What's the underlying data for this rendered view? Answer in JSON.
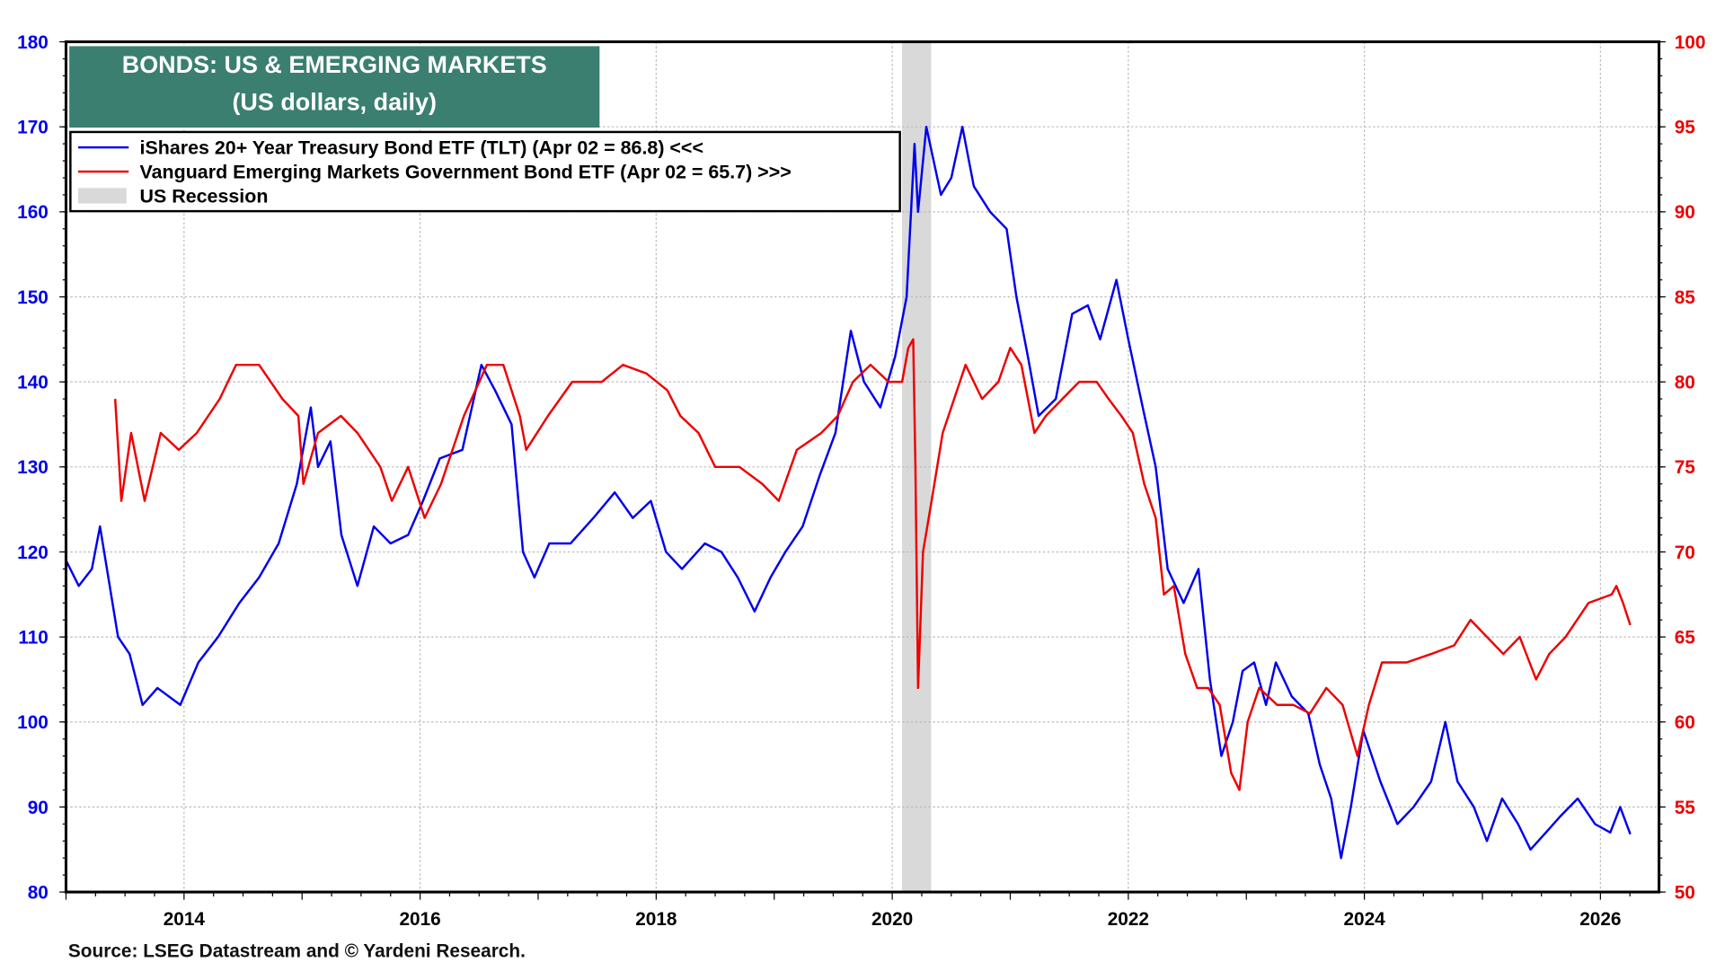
{
  "chart_data": {
    "type": "line",
    "title": "BONDS: US & EMERGING MARKETS",
    "subtitle": "(US dollars, daily)",
    "source": "Source: LSEG Datastream and © Yardeni Research.",
    "x_range": [
      "2013-01-01",
      "2026-06-30"
    ],
    "x_ticks": [
      "2014",
      "2016",
      "2018",
      "2020",
      "2022",
      "2024",
      "2026"
    ],
    "y_left": {
      "range": [
        80,
        180
      ],
      "ticks": [
        80,
        90,
        100,
        110,
        120,
        130,
        140,
        150,
        160,
        170,
        180
      ],
      "color": "#0000ee"
    },
    "y_right": {
      "range": [
        50,
        100
      ],
      "ticks": [
        50,
        55,
        60,
        65,
        70,
        75,
        80,
        85,
        90,
        95,
        100
      ],
      "color": "#ee0000"
    },
    "grid": true,
    "legend_position": "top-left",
    "recession": {
      "label": "US Recession",
      "start": "2020-02-01",
      "end": "2020-04-30",
      "color": "#d9d9d9"
    },
    "series": [
      {
        "name": "iShares 20+ Year Treasury Bond ETF (TLT) (Apr 02 = 86.8) <<<",
        "axis": "left",
        "color": "#0000ee",
        "points": [
          [
            "2013-01-01",
            119
          ],
          [
            "2013-02-10",
            116
          ],
          [
            "2013-03-20",
            118
          ],
          [
            "2013-04-15",
            123
          ],
          [
            "2013-06-10",
            110
          ],
          [
            "2013-07-15",
            108
          ],
          [
            "2013-08-25",
            102
          ],
          [
            "2013-10-10",
            104
          ],
          [
            "2013-12-20",
            102
          ],
          [
            "2014-02-15",
            107
          ],
          [
            "2014-04-15",
            110
          ],
          [
            "2014-06-20",
            114
          ],
          [
            "2014-08-20",
            117
          ],
          [
            "2014-10-20",
            121
          ],
          [
            "2014-12-15",
            128
          ],
          [
            "2015-01-28",
            137
          ],
          [
            "2015-02-20",
            130
          ],
          [
            "2015-03-28",
            133
          ],
          [
            "2015-05-01",
            122
          ],
          [
            "2015-06-20",
            116
          ],
          [
            "2015-08-10",
            123
          ],
          [
            "2015-10-01",
            121
          ],
          [
            "2015-11-25",
            122
          ],
          [
            "2016-01-10",
            126
          ],
          [
            "2016-03-01",
            131
          ],
          [
            "2016-05-10",
            132
          ],
          [
            "2016-07-08",
            142
          ],
          [
            "2016-08-20",
            139
          ],
          [
            "2016-10-10",
            135
          ],
          [
            "2016-11-15",
            120
          ],
          [
            "2016-12-20",
            117
          ],
          [
            "2017-02-05",
            121
          ],
          [
            "2017-04-10",
            121
          ],
          [
            "2017-06-20",
            124
          ],
          [
            "2017-08-25",
            127
          ],
          [
            "2017-10-20",
            124
          ],
          [
            "2017-12-15",
            126
          ],
          [
            "2018-02-01",
            120
          ],
          [
            "2018-03-20",
            118
          ],
          [
            "2018-05-30",
            121
          ],
          [
            "2018-07-20",
            120
          ],
          [
            "2018-09-10",
            117
          ],
          [
            "2018-11-01",
            113
          ],
          [
            "2018-12-20",
            117
          ],
          [
            "2019-02-05",
            120
          ],
          [
            "2019-03-28",
            123
          ],
          [
            "2019-05-20",
            129
          ],
          [
            "2019-07-08",
            134
          ],
          [
            "2019-08-25",
            146
          ],
          [
            "2019-10-05",
            140
          ],
          [
            "2019-11-25",
            137
          ],
          [
            "2020-01-10",
            143
          ],
          [
            "2020-02-15",
            150
          ],
          [
            "2020-03-09",
            168
          ],
          [
            "2020-03-20",
            160
          ],
          [
            "2020-04-15",
            170
          ],
          [
            "2020-05-30",
            162
          ],
          [
            "2020-07-01",
            164
          ],
          [
            "2020-08-05",
            170
          ],
          [
            "2020-09-10",
            163
          ],
          [
            "2020-10-30",
            160
          ],
          [
            "2020-12-20",
            158
          ],
          [
            "2021-01-20",
            150
          ],
          [
            "2021-02-25",
            143
          ],
          [
            "2021-03-28",
            136
          ],
          [
            "2021-05-20",
            138
          ],
          [
            "2021-07-10",
            148
          ],
          [
            "2021-08-28",
            149
          ],
          [
            "2021-10-05",
            145
          ],
          [
            "2021-11-25",
            152
          ],
          [
            "2022-01-01",
            145
          ],
          [
            "2022-02-15",
            137
          ],
          [
            "2022-03-25",
            130
          ],
          [
            "2022-05-01",
            118
          ],
          [
            "2022-06-20",
            114
          ],
          [
            "2022-08-05",
            118
          ],
          [
            "2022-09-10",
            105
          ],
          [
            "2022-10-15",
            96
          ],
          [
            "2022-11-20",
            100
          ],
          [
            "2022-12-20",
            106
          ],
          [
            "2023-01-25",
            107
          ],
          [
            "2023-03-01",
            102
          ],
          [
            "2023-04-01",
            107
          ],
          [
            "2023-05-20",
            103
          ],
          [
            "2023-07-10",
            101
          ],
          [
            "2023-08-15",
            95
          ],
          [
            "2023-09-20",
            91
          ],
          [
            "2023-10-20",
            84
          ],
          [
            "2023-11-20",
            90
          ],
          [
            "2023-12-28",
            99
          ],
          [
            "2024-02-20",
            93
          ],
          [
            "2024-04-12",
            88
          ],
          [
            "2024-06-01",
            90
          ],
          [
            "2024-07-25",
            93
          ],
          [
            "2024-09-08",
            100
          ],
          [
            "2024-10-15",
            93
          ],
          [
            "2024-12-05",
            90
          ],
          [
            "2025-01-15",
            86
          ],
          [
            "2025-03-01",
            91
          ],
          [
            "2025-04-20",
            88
          ],
          [
            "2025-05-28",
            85
          ],
          [
            "2025-07-15",
            87
          ],
          [
            "2025-09-01",
            89
          ],
          [
            "2025-10-22",
            91
          ],
          [
            "2025-12-15",
            88
          ],
          [
            "2026-02-01",
            87
          ],
          [
            "2026-03-01",
            90
          ],
          [
            "2026-04-02",
            86.8
          ]
        ]
      },
      {
        "name": "Vanguard Emerging Markets Government Bond ETF (Apr 02 = 65.7) >>>",
        "axis": "right",
        "color": "#ee0000",
        "points": [
          [
            "2013-06-01",
            79
          ],
          [
            "2013-06-20",
            73
          ],
          [
            "2013-07-20",
            77
          ],
          [
            "2013-09-01",
            73
          ],
          [
            "2013-10-20",
            77
          ],
          [
            "2013-12-15",
            76
          ],
          [
            "2014-02-10",
            77
          ],
          [
            "2014-04-20",
            79
          ],
          [
            "2014-06-10",
            81
          ],
          [
            "2014-08-20",
            81
          ],
          [
            "2014-11-01",
            79
          ],
          [
            "2014-12-20",
            78
          ],
          [
            "2015-01-05",
            74
          ],
          [
            "2015-02-20",
            77
          ],
          [
            "2015-04-30",
            78
          ],
          [
            "2015-06-20",
            77
          ],
          [
            "2015-08-30",
            75
          ],
          [
            "2015-10-05",
            73
          ],
          [
            "2015-11-25",
            75
          ],
          [
            "2016-01-15",
            72
          ],
          [
            "2016-03-05",
            74
          ],
          [
            "2016-05-15",
            78
          ],
          [
            "2016-07-25",
            81
          ],
          [
            "2016-09-15",
            81
          ],
          [
            "2016-11-05",
            78
          ],
          [
            "2016-11-25",
            76
          ],
          [
            "2017-02-01",
            78
          ],
          [
            "2017-04-15",
            80
          ],
          [
            "2017-07-15",
            80
          ],
          [
            "2017-09-20",
            81
          ],
          [
            "2017-12-01",
            80.5
          ],
          [
            "2018-02-05",
            79.5
          ],
          [
            "2018-03-15",
            78
          ],
          [
            "2018-05-10",
            77
          ],
          [
            "2018-07-01",
            75
          ],
          [
            "2018-09-15",
            75
          ],
          [
            "2018-11-25",
            74
          ],
          [
            "2019-01-15",
            73
          ],
          [
            "2019-03-10",
            76
          ],
          [
            "2019-05-25",
            77
          ],
          [
            "2019-07-15",
            78
          ],
          [
            "2019-09-01",
            80
          ],
          [
            "2019-10-25",
            81
          ],
          [
            "2019-12-20",
            80
          ],
          [
            "2020-02-01",
            80
          ],
          [
            "2020-02-20",
            82
          ],
          [
            "2020-03-05",
            82.5
          ],
          [
            "2020-03-12",
            75
          ],
          [
            "2020-03-20",
            62
          ],
          [
            "2020-04-05",
            70
          ],
          [
            "2020-05-01",
            73
          ],
          [
            "2020-06-05",
            77
          ],
          [
            "2020-07-10",
            79
          ],
          [
            "2020-08-15",
            81
          ],
          [
            "2020-10-05",
            79
          ],
          [
            "2020-11-25",
            80
          ],
          [
            "2021-01-01",
            82
          ],
          [
            "2021-02-05",
            81
          ],
          [
            "2021-03-15",
            77
          ],
          [
            "2021-04-20",
            78
          ],
          [
            "2021-06-10",
            79
          ],
          [
            "2021-08-01",
            80
          ],
          [
            "2021-09-25",
            80
          ],
          [
            "2021-11-01",
            79
          ],
          [
            "2021-12-10",
            78
          ],
          [
            "2022-01-15",
            77
          ],
          [
            "2022-02-20",
            74
          ],
          [
            "2022-03-25",
            72
          ],
          [
            "2022-04-20",
            67.5
          ],
          [
            "2022-05-20",
            68
          ],
          [
            "2022-06-25",
            64
          ],
          [
            "2022-08-01",
            62
          ],
          [
            "2022-09-05",
            62
          ],
          [
            "2022-10-10",
            61
          ],
          [
            "2022-11-15",
            57
          ],
          [
            "2022-12-10",
            56
          ],
          [
            "2023-01-05",
            60
          ],
          [
            "2023-02-10",
            62
          ],
          [
            "2023-04-05",
            61
          ],
          [
            "2023-05-25",
            61
          ],
          [
            "2023-07-15",
            60.5
          ],
          [
            "2023-09-05",
            62
          ],
          [
            "2023-10-25",
            61
          ],
          [
            "2023-12-10",
            58
          ],
          [
            "2024-01-15",
            61
          ],
          [
            "2024-02-25",
            63.5
          ],
          [
            "2024-05-10",
            63.5
          ],
          [
            "2024-07-25",
            64
          ],
          [
            "2024-10-05",
            64.5
          ],
          [
            "2024-11-25",
            66
          ],
          [
            "2025-01-15",
            65
          ],
          [
            "2025-03-05",
            64
          ],
          [
            "2025-04-25",
            65
          ],
          [
            "2025-06-15",
            62.5
          ],
          [
            "2025-07-25",
            64
          ],
          [
            "2025-09-15",
            65
          ],
          [
            "2025-11-25",
            67
          ],
          [
            "2026-02-05",
            67.5
          ],
          [
            "2026-02-20",
            68
          ],
          [
            "2026-03-10",
            67
          ],
          [
            "2026-04-02",
            65.7
          ]
        ]
      }
    ],
    "legend": [
      {
        "label": "iShares 20+ Year Treasury Bond ETF (TLT) (Apr 02 = 86.8) <<<",
        "color": "#0000ee",
        "kind": "line"
      },
      {
        "label": "Vanguard Emerging Markets Government Bond ETF (Apr 02 = 65.7) >>>",
        "color": "#ee0000",
        "kind": "line"
      },
      {
        "label": "US Recession",
        "color": "#d9d9d9",
        "kind": "box"
      }
    ]
  }
}
